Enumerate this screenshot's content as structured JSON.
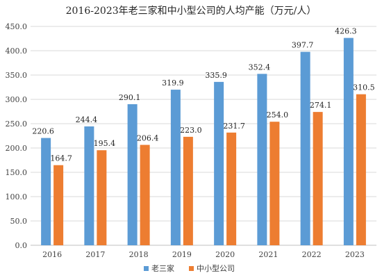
{
  "chart_data": {
    "type": "bar",
    "title": "2016-2023年老三家和中小型公司的人均产能（万元/人）",
    "xlabel": "",
    "ylabel": "",
    "categories": [
      "2016",
      "2017",
      "2018",
      "2019",
      "2020",
      "2021",
      "2022",
      "2023"
    ],
    "series": [
      {
        "name": "老三家",
        "color": "#5B9BD5",
        "values": [
          220.6,
          244.4,
          290.1,
          319.9,
          335.9,
          352.4,
          397.7,
          426.3
        ],
        "labels": [
          "220.6",
          "244.4",
          "290.1",
          "319.9",
          "335.9",
          "352.4",
          "397.7",
          "426.3"
        ]
      },
      {
        "name": "中小型公司",
        "color": "#ED7D31",
        "values": [
          164.7,
          195.4,
          206.4,
          223.0,
          231.7,
          254.0,
          274.1,
          310.5
        ],
        "labels": [
          "164.7",
          "195.4",
          "206.4",
          "223.0",
          "231.7",
          "254.0",
          "274.1",
          "310.5"
        ]
      }
    ],
    "ylim": [
      0,
      450
    ],
    "yticks": [
      "0.0",
      "50.0",
      "100.0",
      "150.0",
      "200.0",
      "250.0",
      "300.0",
      "350.0",
      "400.0",
      "450.0"
    ],
    "ytick_values": [
      0,
      50,
      100,
      150,
      200,
      250,
      300,
      350,
      400,
      450
    ],
    "grid": true,
    "legend_position": "bottom"
  }
}
